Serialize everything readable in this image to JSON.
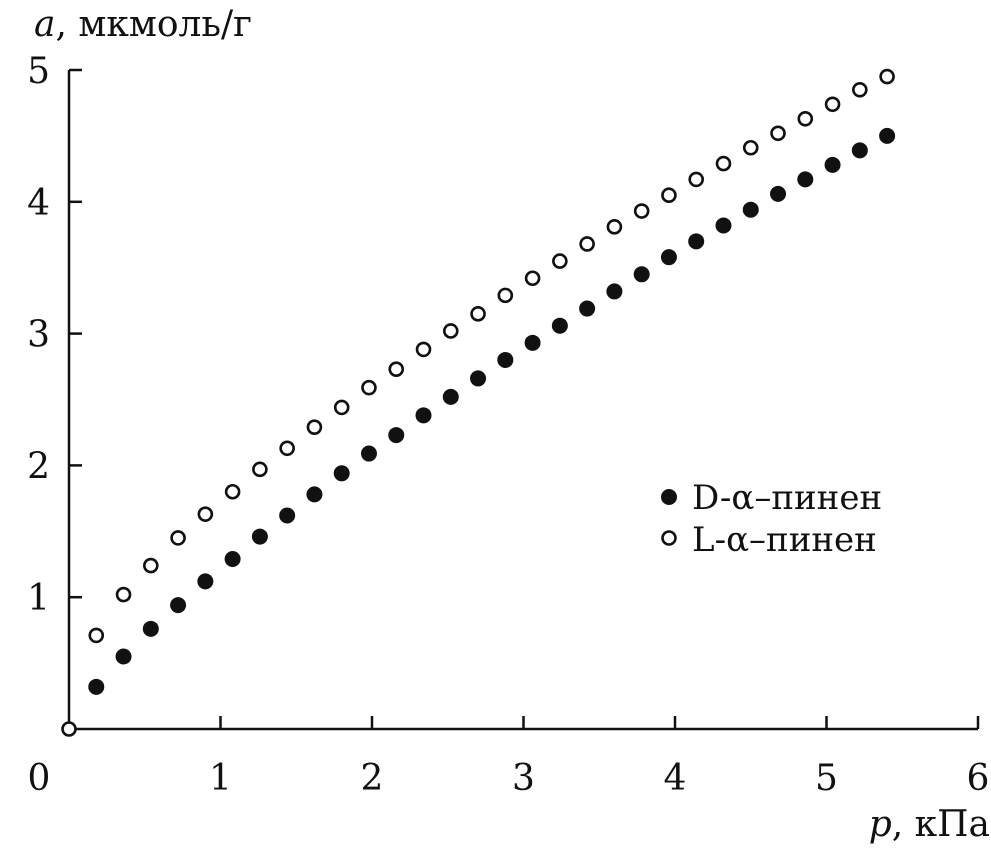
{
  "chart_data": {
    "type": "scatter",
    "title": "",
    "xlabel_var": "p",
    "xlabel_unit": ", кПа",
    "ylabel_var": "a",
    "ylabel_unit": ", мкмоль/г",
    "xlim": [
      0,
      6
    ],
    "ylim": [
      0,
      5
    ],
    "xticks": [
      "0",
      "1",
      "2",
      "3",
      "4",
      "5",
      "6"
    ],
    "yticks": [
      "1",
      "2",
      "3",
      "4",
      "5"
    ],
    "grid": false,
    "legend_position": "right-middle",
    "origin_point": {
      "x": 0,
      "y": 0
    },
    "series": [
      {
        "name": "D-α–пинен",
        "marker": "filled-circle",
        "color": "#111111",
        "x": [
          0.18,
          0.36,
          0.54,
          0.72,
          0.9,
          1.08,
          1.26,
          1.44,
          1.62,
          1.8,
          1.98,
          2.16,
          2.34,
          2.52,
          2.7,
          2.88,
          3.06,
          3.24,
          3.42,
          3.6,
          3.78,
          3.96,
          4.14,
          4.32,
          4.5,
          4.68,
          4.86,
          5.04,
          5.22,
          5.4
        ],
        "y": [
          0.32,
          0.55,
          0.76,
          0.94,
          1.12,
          1.29,
          1.46,
          1.62,
          1.78,
          1.94,
          2.09,
          2.23,
          2.38,
          2.52,
          2.66,
          2.8,
          2.93,
          3.06,
          3.19,
          3.32,
          3.45,
          3.58,
          3.7,
          3.82,
          3.94,
          4.06,
          4.17,
          4.28,
          4.39,
          4.5
        ]
      },
      {
        "name": "L-α–пинен",
        "marker": "open-circle",
        "color": "#111111",
        "x": [
          0.18,
          0.36,
          0.54,
          0.72,
          0.9,
          1.08,
          1.26,
          1.44,
          1.62,
          1.8,
          1.98,
          2.16,
          2.34,
          2.52,
          2.7,
          2.88,
          3.06,
          3.24,
          3.42,
          3.6,
          3.78,
          3.96,
          4.14,
          4.32,
          4.5,
          4.68,
          4.86,
          5.04,
          5.22,
          5.4
        ],
        "y": [
          0.71,
          1.02,
          1.24,
          1.45,
          1.63,
          1.8,
          1.97,
          2.13,
          2.29,
          2.44,
          2.59,
          2.73,
          2.88,
          3.02,
          3.15,
          3.29,
          3.42,
          3.55,
          3.68,
          3.81,
          3.93,
          4.05,
          4.17,
          4.29,
          4.41,
          4.52,
          4.63,
          4.74,
          4.85,
          4.95
        ]
      }
    ]
  }
}
